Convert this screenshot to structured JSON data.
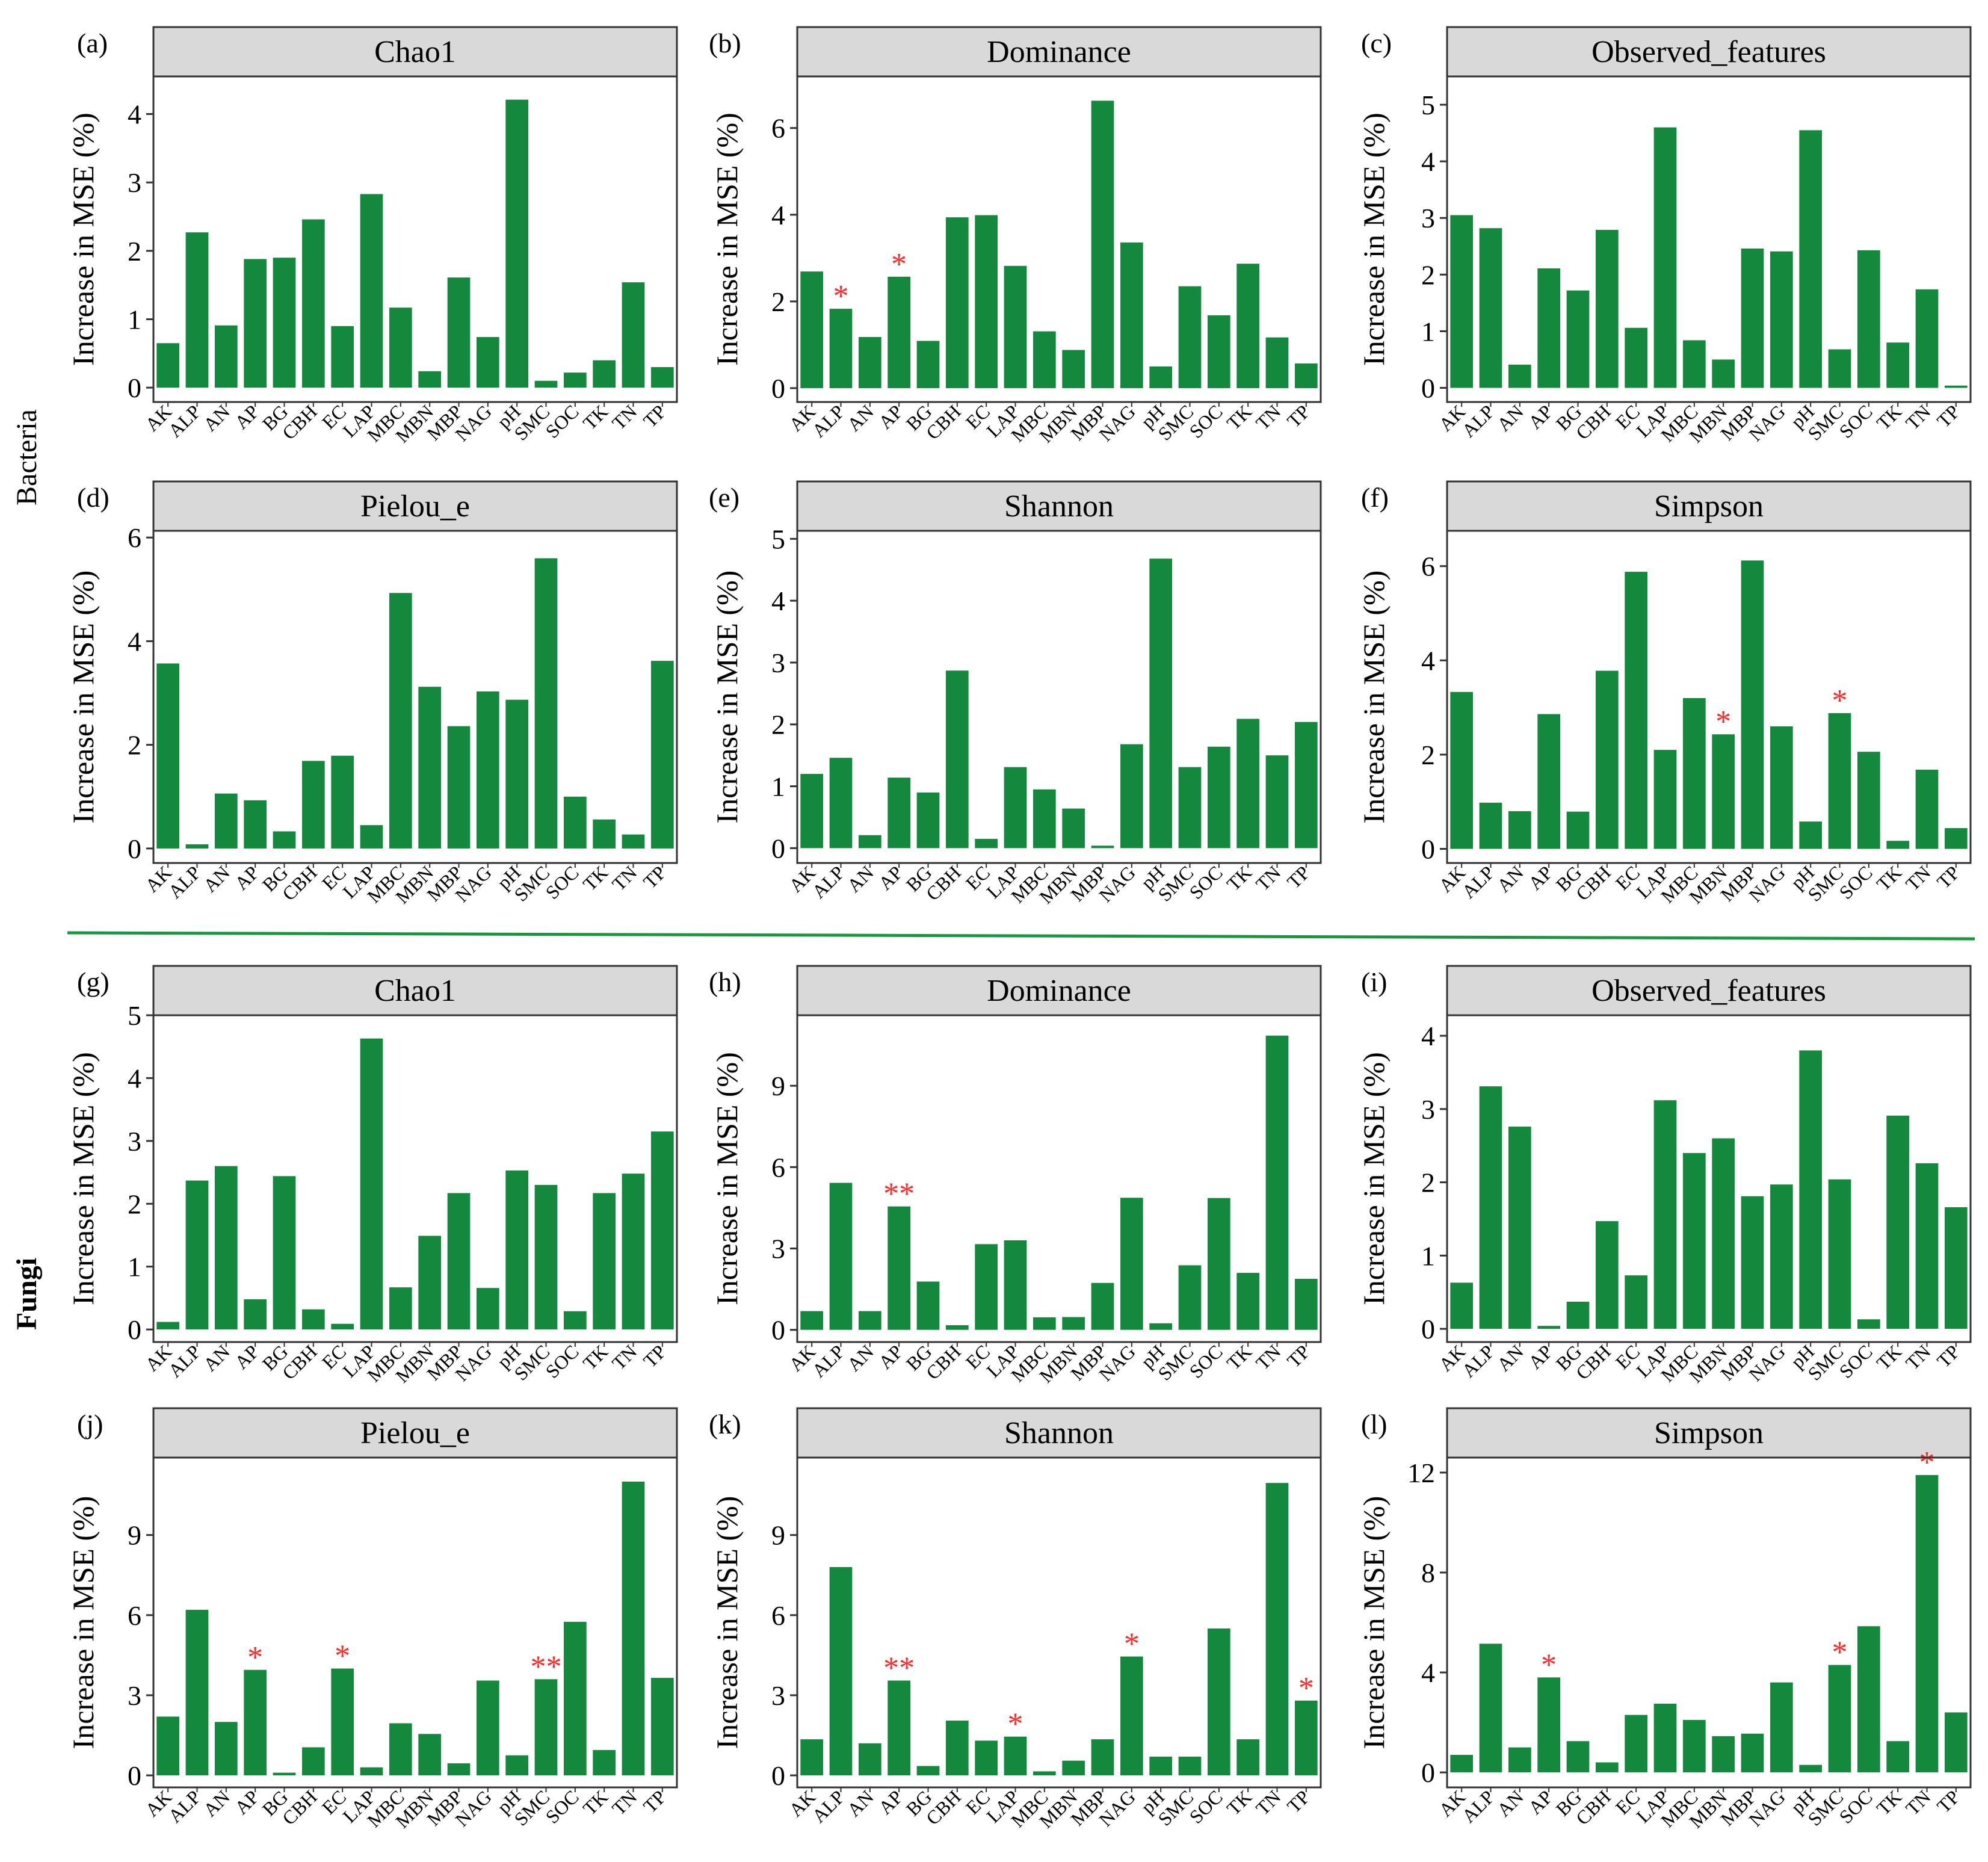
{
  "figure": {
    "group_labels": {
      "bacteria": "Bacteria",
      "fungi": "Fungi"
    },
    "separator_color": "#1a9641",
    "bar_color": "#14883c",
    "star_color": "#ff2a2a",
    "strip_color": "#d9d9d9"
  },
  "chart_data": [
    {
      "type": "bar",
      "panel": "(a)",
      "title": "Chao1",
      "group": "Bacteria",
      "ylabel": "Increase in MSE (%)",
      "categories": [
        "AK",
        "ALP",
        "AN",
        "AP",
        "BG",
        "CBH",
        "EC",
        "LAP",
        "MBC",
        "MBN",
        "MBP",
        "NAG",
        "pH",
        "SMC",
        "SOC",
        "TK",
        "TN",
        "TP"
      ],
      "values": [
        0.65,
        2.27,
        0.91,
        1.88,
        1.9,
        2.46,
        0.9,
        2.83,
        1.17,
        0.24,
        1.61,
        0.74,
        4.21,
        0.1,
        0.22,
        0.4,
        1.54,
        0.3
      ],
      "significance": [
        "",
        "",
        "",
        "",
        "",
        "",
        "",
        "",
        "",
        "",
        "",
        "",
        "",
        "",
        "",
        "",
        "",
        ""
      ],
      "yticks": [
        0,
        1,
        2,
        3,
        4
      ],
      "ylim": [
        -0.21,
        4.55
      ]
    },
    {
      "type": "bar",
      "panel": "(b)",
      "title": "Dominance",
      "group": "Bacteria",
      "ylabel": "Increase in MSE (%)",
      "categories": [
        "AK",
        "ALP",
        "AN",
        "AP",
        "BG",
        "CBH",
        "EC",
        "LAP",
        "MBC",
        "MBN",
        "MBP",
        "NAG",
        "pH",
        "SMC",
        "SOC",
        "TK",
        "TN",
        "TP"
      ],
      "values": [
        2.69,
        1.83,
        1.18,
        2.57,
        1.09,
        3.94,
        3.99,
        2.82,
        1.31,
        0.88,
        6.63,
        3.36,
        0.5,
        2.35,
        1.68,
        2.87,
        1.17,
        0.57
      ],
      "significance": [
        "",
        "*",
        "",
        "*",
        "",
        "",
        "",
        "",
        "",
        "",
        "",
        "",
        "",
        "",
        "",
        "",
        "",
        ""
      ],
      "yticks": [
        0,
        2,
        4,
        6
      ],
      "ylim": [
        -0.32,
        7.19
      ]
    },
    {
      "type": "bar",
      "panel": "(c)",
      "title": "Observed_features",
      "group": "Bacteria",
      "ylabel": "Increase in MSE (%)",
      "categories": [
        "AK",
        "ALP",
        "AN",
        "AP",
        "BG",
        "CBH",
        "EC",
        "LAP",
        "MBC",
        "MBN",
        "MBP",
        "NAG",
        "pH",
        "SMC",
        "SOC",
        "TK",
        "TN",
        "TP"
      ],
      "values": [
        3.05,
        2.82,
        0.41,
        2.11,
        1.72,
        2.79,
        1.06,
        4.6,
        0.84,
        0.5,
        2.46,
        2.41,
        4.55,
        0.68,
        2.43,
        0.8,
        1.74,
        0.04
      ],
      "significance": [
        "",
        "",
        "",
        "",
        "",
        "",
        "",
        "",
        "",
        "",
        "",
        "",
        "",
        "",
        "",
        "",
        "",
        ""
      ],
      "yticks": [
        0,
        1,
        2,
        3,
        4,
        5
      ],
      "ylim": [
        -0.25,
        5.5
      ]
    },
    {
      "type": "bar",
      "panel": "(d)",
      "title": "Pielou_e",
      "group": "Bacteria",
      "ylabel": "Increase in MSE (%)",
      "categories": [
        "AK",
        "ALP",
        "AN",
        "AP",
        "BG",
        "CBH",
        "EC",
        "LAP",
        "MBC",
        "MBN",
        "MBP",
        "NAG",
        "pH",
        "SMC",
        "SOC",
        "TK",
        "TN",
        "TP"
      ],
      "values": [
        3.57,
        0.08,
        1.06,
        0.93,
        0.33,
        1.69,
        1.79,
        0.45,
        4.93,
        3.12,
        2.36,
        3.03,
        2.87,
        5.6,
        1.0,
        0.56,
        0.27,
        3.62
      ],
      "significance": [
        "",
        "",
        "",
        "",
        "",
        "",
        "",
        "",
        "",
        "",
        "",
        "",
        "",
        "",
        "",
        "",
        "",
        ""
      ],
      "yticks": [
        0,
        2,
        4,
        6
      ],
      "ylim": [
        -0.28,
        6.13
      ]
    },
    {
      "type": "bar",
      "panel": "(e)",
      "title": "Shannon",
      "group": "Bacteria",
      "ylabel": "Increase in MSE (%)",
      "categories": [
        "AK",
        "ALP",
        "AN",
        "AP",
        "BG",
        "CBH",
        "EC",
        "LAP",
        "MBC",
        "MBN",
        "MBP",
        "NAG",
        "pH",
        "SMC",
        "SOC",
        "TK",
        "TN",
        "TP"
      ],
      "values": [
        1.2,
        1.46,
        0.21,
        1.14,
        0.9,
        2.87,
        0.15,
        1.31,
        0.95,
        0.64,
        0.04,
        1.68,
        4.68,
        1.31,
        1.64,
        2.09,
        1.5,
        2.04
      ],
      "significance": [
        "",
        "",
        "",
        "",
        "",
        "",
        "",
        "",
        "",
        "",
        "",
        "",
        "",
        "",
        "",
        "",
        "",
        ""
      ],
      "yticks": [
        0,
        1,
        2,
        3,
        4,
        5
      ],
      "ylim": [
        -0.24,
        5.13
      ]
    },
    {
      "type": "bar",
      "panel": "(f)",
      "title": "Simpson",
      "group": "Bacteria",
      "ylabel": "Increase in MSE (%)",
      "categories": [
        "AK",
        "ALP",
        "AN",
        "AP",
        "BG",
        "CBH",
        "EC",
        "LAP",
        "MBC",
        "MBN",
        "MBP",
        "NAG",
        "pH",
        "SMC",
        "SOC",
        "TK",
        "TN",
        "TP"
      ],
      "values": [
        3.33,
        0.98,
        0.8,
        2.86,
        0.79,
        3.78,
        5.88,
        2.1,
        3.2,
        2.43,
        6.12,
        2.6,
        0.58,
        2.88,
        2.06,
        0.17,
        1.68,
        0.44
      ],
      "significance": [
        "",
        "",
        "",
        "",
        "",
        "",
        "",
        "",
        "",
        "*",
        "",
        "",
        "",
        "*",
        "",
        "",
        "",
        ""
      ],
      "yticks": [
        0,
        2,
        4,
        6
      ],
      "ylim": [
        -0.3,
        6.75
      ]
    },
    {
      "type": "bar",
      "panel": "(g)",
      "title": "Chao1",
      "group": "Fungi",
      "ylabel": "Increase in MSE (%)",
      "categories": [
        "AK",
        "ALP",
        "AN",
        "AP",
        "BG",
        "CBH",
        "EC",
        "LAP",
        "MBC",
        "MBN",
        "MBP",
        "NAG",
        "pH",
        "SMC",
        "SOC",
        "TK",
        "TN",
        "TP"
      ],
      "values": [
        0.12,
        2.37,
        2.6,
        0.48,
        2.44,
        0.32,
        0.09,
        4.63,
        0.67,
        1.49,
        2.17,
        0.66,
        2.53,
        2.3,
        0.29,
        2.17,
        2.48,
        3.15
      ],
      "significance": [
        "",
        "",
        "",
        "",
        "",
        "",
        "",
        "",
        "",
        "",
        "",
        "",
        "",
        "",
        "",
        "",
        "",
        ""
      ],
      "yticks": [
        0,
        1,
        2,
        3,
        4,
        5
      ],
      "ylim": [
        -0.2,
        5.0
      ]
    },
    {
      "type": "bar",
      "panel": "(h)",
      "title": "Dominance",
      "group": "Fungi",
      "ylabel": "Increase in MSE (%)",
      "categories": [
        "AK",
        "ALP",
        "AN",
        "AP",
        "BG",
        "CBH",
        "EC",
        "LAP",
        "MBC",
        "MBN",
        "MBP",
        "NAG",
        "pH",
        "SMC",
        "SOC",
        "TK",
        "TN",
        "TP"
      ],
      "values": [
        0.69,
        5.42,
        0.69,
        4.55,
        1.78,
        0.17,
        3.16,
        3.3,
        0.46,
        0.47,
        1.73,
        4.87,
        0.24,
        2.38,
        4.86,
        2.1,
        10.85,
        1.88
      ],
      "significance": [
        "",
        "",
        "",
        "**",
        "",
        "",
        "",
        "",
        "",
        "",
        "",
        "",
        "",
        "",
        "",
        "",
        "",
        ""
      ],
      "yticks": [
        0,
        3,
        6,
        9
      ],
      "ylim": [
        -0.45,
        11.6
      ]
    },
    {
      "type": "bar",
      "panel": "(i)",
      "title": "Observed_features",
      "group": "Fungi",
      "ylabel": "Increase in MSE (%)",
      "categories": [
        "AK",
        "ALP",
        "AN",
        "AP",
        "BG",
        "CBH",
        "EC",
        "LAP",
        "MBC",
        "MBN",
        "MBP",
        "NAG",
        "pH",
        "SMC",
        "SOC",
        "TK",
        "TN",
        "TP"
      ],
      "values": [
        0.63,
        3.31,
        2.76,
        0.04,
        0.37,
        1.47,
        0.73,
        3.12,
        2.4,
        2.6,
        1.81,
        1.97,
        3.8,
        2.04,
        0.13,
        2.91,
        2.26,
        1.66
      ],
      "significance": [
        "",
        "",
        "",
        "",
        "",
        "",
        "",
        "",
        "",
        "",
        "",
        "",
        "",
        "",
        "",
        "",
        "",
        ""
      ],
      "yticks": [
        0,
        1,
        2,
        3,
        4
      ],
      "ylim": [
        -0.18,
        4.28
      ]
    },
    {
      "type": "bar",
      "panel": "(j)",
      "title": "Pielou_e",
      "group": "Fungi",
      "ylabel": "Increase in MSE (%)",
      "categories": [
        "AK",
        "ALP",
        "AN",
        "AP",
        "BG",
        "CBH",
        "EC",
        "LAP",
        "MBC",
        "MBN",
        "MBP",
        "NAG",
        "pH",
        "SMC",
        "SOC",
        "TK",
        "TN",
        "TP"
      ],
      "values": [
        2.2,
        6.2,
        2.0,
        3.95,
        0.1,
        1.05,
        4.0,
        0.3,
        1.95,
        1.55,
        0.45,
        3.55,
        0.75,
        3.6,
        5.75,
        0.95,
        11.0,
        3.65
      ],
      "significance": [
        "",
        "",
        "",
        "*",
        "",
        "",
        "*",
        "",
        "",
        "",
        "",
        "",
        "",
        "**",
        "",
        "",
        "",
        ""
      ],
      "yticks": [
        0,
        3,
        6,
        9
      ],
      "ylim": [
        -0.45,
        11.9
      ]
    },
    {
      "type": "bar",
      "panel": "(k)",
      "title": "Shannon",
      "group": "Fungi",
      "ylabel": "Increase in MSE (%)",
      "categories": [
        "AK",
        "ALP",
        "AN",
        "AP",
        "BG",
        "CBH",
        "EC",
        "LAP",
        "MBC",
        "MBN",
        "MBP",
        "NAG",
        "pH",
        "SMC",
        "SOC",
        "TK",
        "TN",
        "TP"
      ],
      "values": [
        1.35,
        7.8,
        1.2,
        3.55,
        0.35,
        2.05,
        1.3,
        1.45,
        0.15,
        0.55,
        1.35,
        4.45,
        0.7,
        0.7,
        5.5,
        1.35,
        10.95,
        2.8
      ],
      "significance": [
        "",
        "",
        "",
        "**",
        "",
        "",
        "",
        "*",
        "",
        "",
        "",
        "*",
        "",
        "",
        "",
        "",
        "",
        "*"
      ],
      "yticks": [
        0,
        3,
        6,
        9
      ],
      "ylim": [
        -0.45,
        11.9
      ]
    },
    {
      "type": "bar",
      "panel": "(l)",
      "title": "Simpson",
      "group": "Fungi",
      "ylabel": "Increase in MSE (%)",
      "categories": [
        "AK",
        "ALP",
        "AN",
        "AP",
        "BG",
        "CBH",
        "EC",
        "LAP",
        "MBC",
        "MBN",
        "MBP",
        "NAG",
        "pH",
        "SMC",
        "SOC",
        "TK",
        "TN",
        "TP"
      ],
      "values": [
        0.7,
        5.15,
        1.0,
        3.8,
        1.25,
        0.4,
        2.3,
        2.75,
        2.1,
        1.45,
        1.55,
        3.6,
        0.3,
        4.3,
        5.85,
        1.25,
        11.9,
        2.4
      ],
      "significance": [
        "",
        "",
        "",
        "*",
        "",
        "",
        "",
        "",
        "",
        "",
        "",
        "",
        "",
        "*",
        "",
        "",
        "*",
        ""
      ],
      "yticks": [
        0,
        4,
        8,
        12
      ],
      "ylim": [
        -0.6,
        12.6
      ]
    }
  ]
}
